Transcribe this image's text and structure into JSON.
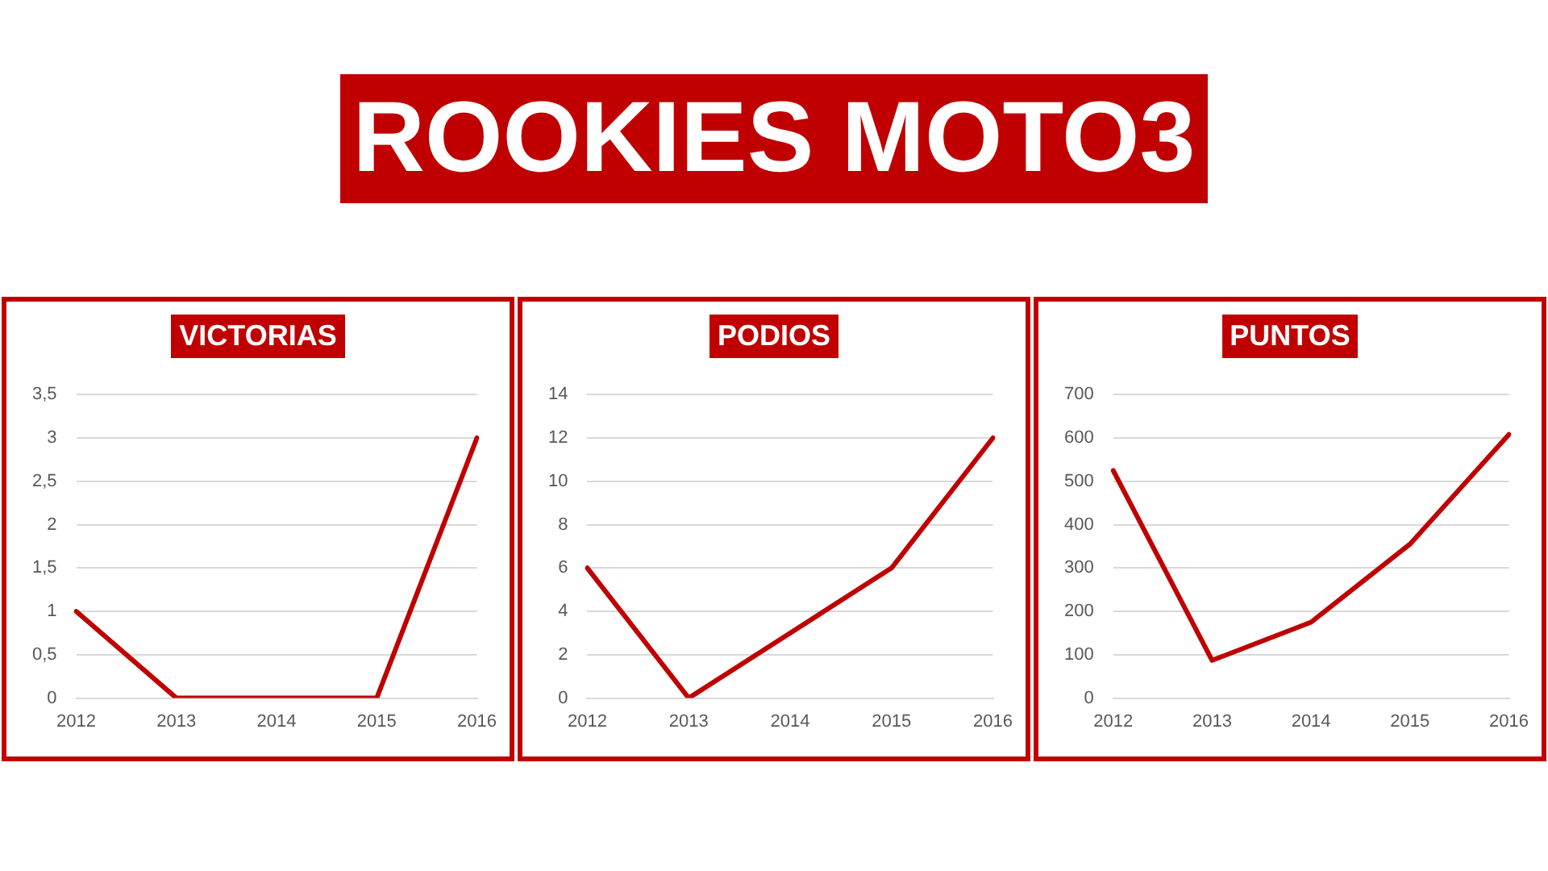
{
  "chart_data": [
    {
      "type": "other",
      "title": "ROOKIES MOTO3"
    },
    {
      "type": "line",
      "title": "VICTORIAS",
      "categories": [
        "2012",
        "2013",
        "2014",
        "2015",
        "2016"
      ],
      "series": [
        {
          "color": "#c00000",
          "values": [
            1,
            0,
            0,
            0,
            3
          ]
        }
      ],
      "ylim": [
        0,
        3.5
      ],
      "yticks": [
        0,
        {
          "value": 0.5,
          "label": "0,5"
        },
        1,
        {
          "value": 1.5,
          "label": "1,5"
        },
        2,
        {
          "value": 2.5,
          "label": "2,5"
        },
        3,
        {
          "value": 3.5,
          "label": "3,5"
        }
      ],
      "grid": "y",
      "legend": false,
      "marker": "none",
      "line_style": "solid"
    },
    {
      "type": "line",
      "title": "PODIOS",
      "categories": [
        "2012",
        "2013",
        "2014",
        "2015",
        "2016"
      ],
      "series": [
        {
          "color": "#c00000",
          "values": [
            6,
            0,
            3,
            6,
            12
          ]
        }
      ],
      "ylim": [
        0,
        14
      ],
      "yticks": [
        0,
        2,
        4,
        6,
        8,
        10,
        12,
        14
      ],
      "grid": "y",
      "legend": false,
      "marker": "none",
      "line_style": "solid"
    },
    {
      "type": "line",
      "title": "PUNTOS",
      "categories": [
        "2012",
        "2013",
        "2014",
        "2015",
        "2016"
      ],
      "series": [
        {
          "color": "#c00000",
          "values": [
            525,
            87,
            175,
            355,
            608
          ]
        }
      ],
      "ylim": [
        0,
        700
      ],
      "yticks": [
        0,
        100,
        200,
        300,
        400,
        500,
        600,
        700
      ],
      "grid": "y",
      "legend": false,
      "marker": "none",
      "line_style": "solid"
    }
  ]
}
